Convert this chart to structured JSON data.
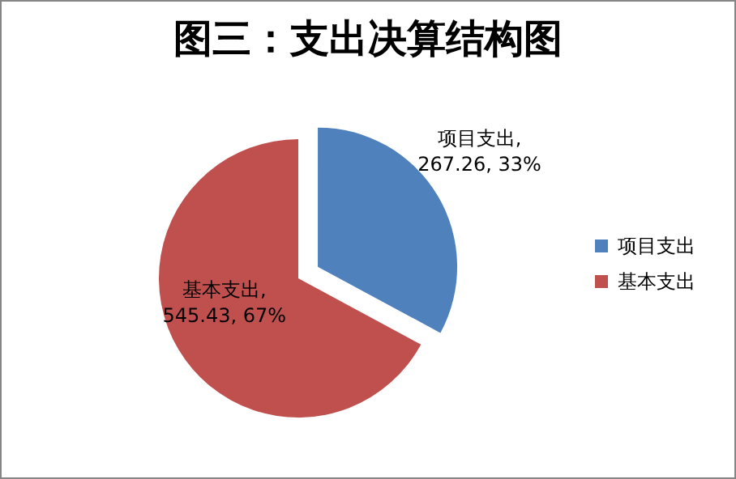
{
  "chart_data": {
    "type": "pie",
    "title": "图三：支出决算结构图",
    "categories": [
      "项目支出",
      "基本支出"
    ],
    "values": [
      267.26,
      545.43
    ],
    "colors": [
      "#4f81bd",
      "#c0504d"
    ],
    "value_labels": [
      "项目支出, 267.26, 33%",
      "基本支出, 545.43, 67%"
    ],
    "legend": "right"
  }
}
